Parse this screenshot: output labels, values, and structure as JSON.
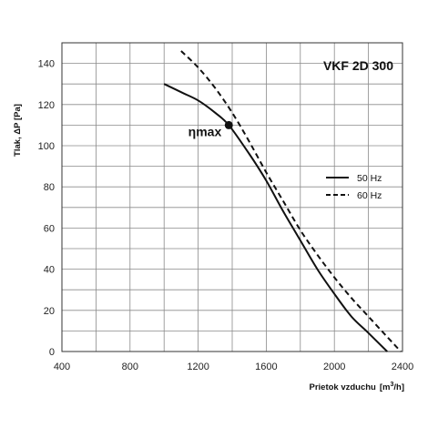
{
  "chart_data": {
    "type": "line",
    "title": "VKF 2D 300",
    "xlabel": "Prietok vzduchu",
    "xunit_base": "[m",
    "xunit_sup": "3",
    "xunit_tail": "/h]",
    "ylabel": "Tlak, ΔP [Pa]",
    "xlim": [
      400,
      2400
    ],
    "ylim": [
      0,
      150
    ],
    "xticks": [
      400,
      800,
      1200,
      1600,
      2000,
      2400
    ],
    "yticks": [
      0,
      20,
      40,
      60,
      80,
      100,
      120,
      140
    ],
    "x_minor_step": 200,
    "y_minor_step": 10,
    "grid": true,
    "legend_position": "right",
    "series": [
      {
        "name": "50 Hz",
        "style": "solid",
        "color": "#111111",
        "points": [
          [
            1000,
            130
          ],
          [
            1100,
            126
          ],
          [
            1200,
            122
          ],
          [
            1300,
            116
          ],
          [
            1380,
            110
          ],
          [
            1500,
            96
          ],
          [
            1600,
            83
          ],
          [
            1700,
            68
          ],
          [
            1800,
            54
          ],
          [
            1900,
            40
          ],
          [
            2000,
            28
          ],
          [
            2100,
            17
          ],
          [
            2200,
            9
          ],
          [
            2310,
            0
          ]
        ]
      },
      {
        "name": "60 Hz",
        "style": "dashed",
        "color": "#111111",
        "points": [
          [
            1100,
            146
          ],
          [
            1200,
            138
          ],
          [
            1300,
            128
          ],
          [
            1400,
            116
          ],
          [
            1500,
            102
          ],
          [
            1600,
            87
          ],
          [
            1700,
            73
          ],
          [
            1800,
            59
          ],
          [
            1900,
            47
          ],
          [
            2000,
            36
          ],
          [
            2100,
            26
          ],
          [
            2200,
            17
          ],
          [
            2300,
            8
          ],
          [
            2390,
            0
          ]
        ]
      }
    ],
    "annotation": {
      "text": "ηmax",
      "x": 1380,
      "y": 110
    }
  }
}
